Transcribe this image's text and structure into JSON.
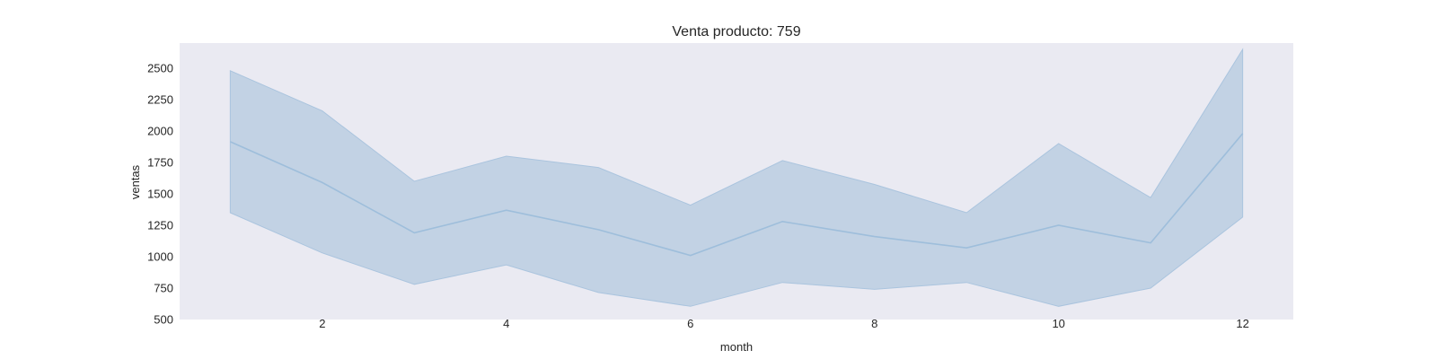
{
  "chart_data": {
    "type": "line",
    "title": "Venta producto: 759",
    "xlabel": "month",
    "ylabel": "ventas",
    "xlim": [
      0.45,
      12.55
    ],
    "ylim": [
      500,
      2700
    ],
    "xticks": [
      2,
      4,
      6,
      8,
      10,
      12
    ],
    "yticks": [
      500,
      750,
      1000,
      1250,
      1500,
      1750,
      2000,
      2250,
      2500
    ],
    "grid": false,
    "background_color": "#eaeaf2",
    "line_color": "#9ebedb",
    "band_color": "#c2d2e4",
    "band_edge_color": "#aac4de",
    "series": [
      {
        "x": [
          1,
          2,
          3,
          4,
          5,
          6,
          7,
          8,
          9,
          10,
          11,
          12
        ],
        "y": [
          1915,
          1590,
          1190,
          1370,
          1215,
          1010,
          1280,
          1160,
          1070,
          1250,
          1110,
          1980
        ],
        "lower": [
          1350,
          1030,
          780,
          935,
          715,
          605,
          795,
          740,
          795,
          605,
          750,
          1315
        ],
        "upper": [
          2480,
          2160,
          1600,
          1800,
          1710,
          1410,
          1765,
          1575,
          1350,
          1900,
          1470,
          2650
        ]
      }
    ]
  }
}
